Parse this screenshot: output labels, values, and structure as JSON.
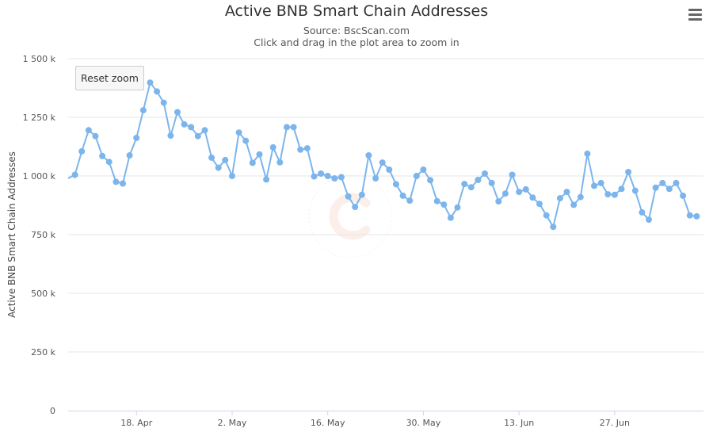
{
  "chart_data": {
    "type": "line",
    "title": "Active BNB Smart Chain Addresses",
    "subtitle": [
      "Source: BscScan.com",
      "Click and drag in the plot area to zoom in"
    ],
    "ylabel": "Active BNB Smart Chain Addresses",
    "xlabel": "",
    "ylim": [
      0,
      1500000
    ],
    "yticks": [
      0,
      250000,
      500000,
      750000,
      1000000,
      1250000,
      1500000
    ],
    "ytick_labels": [
      "0",
      "250 k",
      "500 k",
      "750 k",
      "1 000 k",
      "1 250 k",
      "1 500 k"
    ],
    "xlim": [
      "2021-04-08",
      "2021-07-10"
    ],
    "xticks": [
      "2021-04-18",
      "2021-05-02",
      "2021-05-16",
      "2021-05-30",
      "2021-06-13",
      "2021-06-27"
    ],
    "xtick_labels": [
      "18. Apr",
      "2. May",
      "16. May",
      "30. May",
      "13. Jun",
      "27. Jun"
    ],
    "grid": true,
    "legend": "none",
    "series": [
      {
        "color": "#7cb5ec",
        "start_date": "2021-04-08",
        "values": [
          990000,
          1005000,
          1105000,
          1195000,
          1170000,
          1085000,
          1060000,
          975000,
          968000,
          1088000,
          1162000,
          1280000,
          1398000,
          1360000,
          1312000,
          1172000,
          1272000,
          1220000,
          1208000,
          1170000,
          1195000,
          1078000,
          1035000,
          1068000,
          1000000,
          1185000,
          1150000,
          1056000,
          1092000,
          985000,
          1122000,
          1058000,
          1208000,
          1208000,
          1112000,
          1118000,
          998000,
          1010000,
          1000000,
          990000,
          995000,
          913000,
          868000,
          920000,
          1088000,
          990000,
          1057000,
          1027000,
          965000,
          916000,
          895000,
          1000000,
          1027000,
          982000,
          893000,
          878000,
          822000,
          866000,
          966000,
          952000,
          983000,
          1010000,
          970000,
          892000,
          925000,
          1005000,
          932000,
          943000,
          908000,
          881000,
          832000,
          783000,
          905000,
          932000,
          877000,
          910000,
          1095000,
          958000,
          970000,
          922000,
          920000,
          945000,
          1017000,
          937000,
          845000,
          814000,
          950000,
          970000,
          945000,
          970000,
          916000,
          832000,
          828000
        ]
      }
    ]
  },
  "ui": {
    "reset_zoom_label": "Reset zoom",
    "menu_icon": "hamburger-menu-icon",
    "watermark_icon": "coinmarketcap-watermark-icon"
  }
}
